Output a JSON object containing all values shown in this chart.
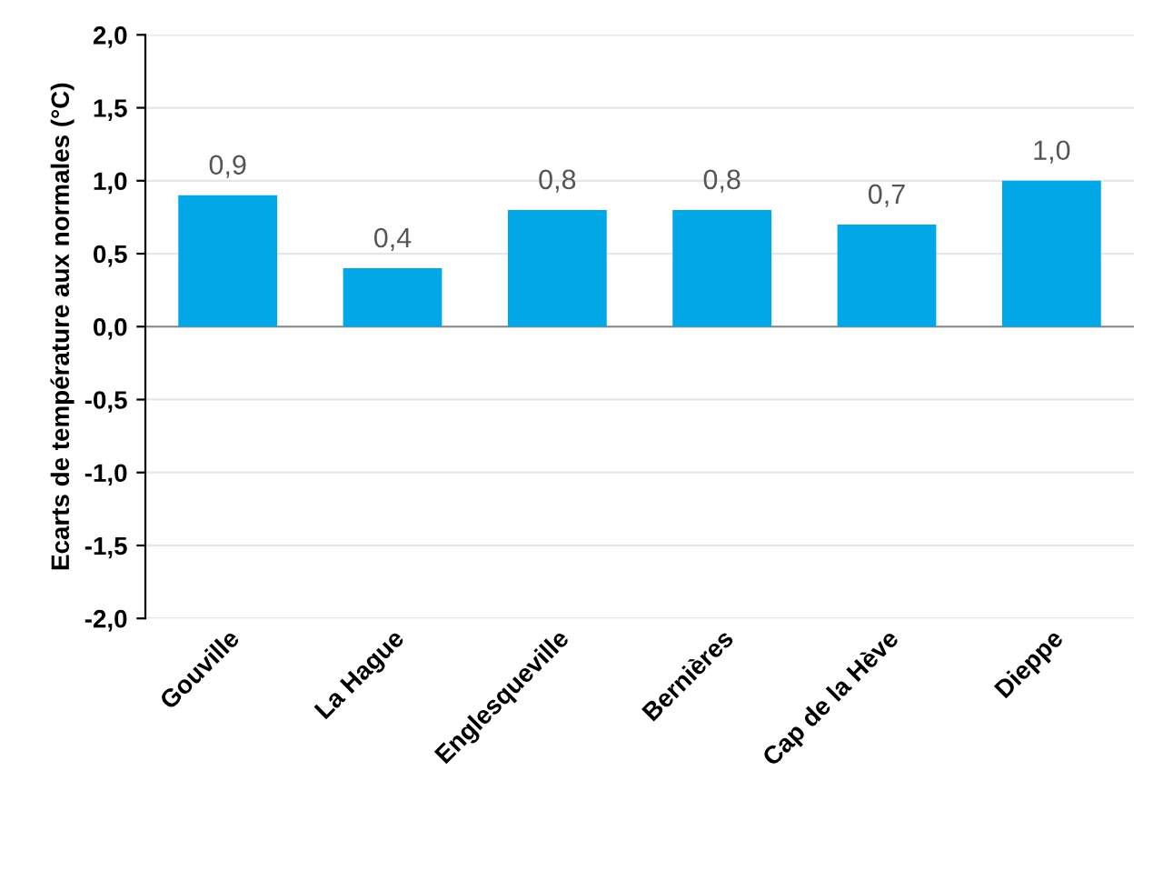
{
  "chart_data": {
    "type": "bar",
    "ylabel": "Ecarts de température aux normales (°C)",
    "categories": [
      "Gouville",
      "La Hague",
      "Englesqueville",
      "Bernières",
      "Cap de la Hève",
      "Dieppe"
    ],
    "values": [
      0.9,
      0.4,
      0.8,
      0.8,
      0.7,
      1.0
    ],
    "value_labels": [
      "0,9",
      "0,4",
      "0,8",
      "0,8",
      "0,7",
      "1,0"
    ],
    "color": "#00a8e8",
    "ylim": [
      -2.0,
      2.0
    ],
    "yticks": [
      {
        "value": -2.0,
        "label": "-2,0"
      },
      {
        "value": -1.5,
        "label": "-1,5"
      },
      {
        "value": -1.0,
        "label": "-1,0"
      },
      {
        "value": -0.5,
        "label": "-0,5"
      },
      {
        "value": 0.0,
        "label": "0,0"
      },
      {
        "value": 0.5,
        "label": "0,5"
      },
      {
        "value": 1.0,
        "label": "1,0"
      },
      {
        "value": 1.5,
        "label": "1,5"
      },
      {
        "value": 2.0,
        "label": "2,0"
      }
    ],
    "grid": "y",
    "legend": false
  }
}
